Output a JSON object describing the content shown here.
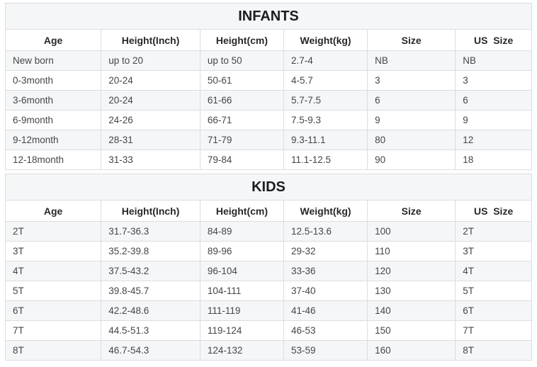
{
  "page": {
    "background": "#ffffff"
  },
  "colors": {
    "row_shade": "#f5f6f8",
    "grid_border": "#dadde0",
    "outer_border": "#c5c9cc",
    "title_text": "#1b1c1e",
    "header_text": "#26282a",
    "cell_text": "#43464a"
  },
  "chart_data": [
    {
      "type": "table",
      "id": "infants",
      "title": "INFANTS",
      "columns": [
        "Age",
        "Height(Inch)",
        "Height(cm)",
        "Weight(kg)",
        "Size",
        "US  Size"
      ],
      "rows": [
        [
          "New born",
          "up to 20",
          "up to 50",
          "2.7-4",
          "NB",
          "NB"
        ],
        [
          "0-3month",
          "20-24",
          "50-61",
          "4-5.7",
          "3",
          "3"
        ],
        [
          "3-6month",
          "20-24",
          "61-66",
          "5.7-7.5",
          "6",
          "6"
        ],
        [
          "6-9month",
          "24-26",
          "66-71",
          "7.5-9.3",
          "9",
          "9"
        ],
        [
          "9-12month",
          "28-31",
          "71-79",
          "9.3-11.1",
          "80",
          "12"
        ],
        [
          "12-18month",
          "31-33",
          "79-84",
          "11.1-12.5",
          "90",
          "18"
        ]
      ],
      "layout": {
        "column_widths_pct": [
          18.2,
          18.8,
          15.9,
          15.9,
          16.7,
          14.5
        ],
        "shaded_rows": "odd",
        "grid": true,
        "title_position": "top-center"
      }
    },
    {
      "type": "table",
      "id": "kids",
      "title": "KIDS",
      "columns": [
        "Age",
        "Height(Inch)",
        "Height(cm)",
        "Weight(kg)",
        "Size",
        "US  Size"
      ],
      "rows": [
        [
          "2T",
          "31.7-36.3",
          "84-89",
          "12.5-13.6",
          "100",
          "2T"
        ],
        [
          "3T",
          "35.2-39.8",
          "89-96",
          "29-32",
          "110",
          "3T"
        ],
        [
          "4T",
          "37.5-43.2",
          "96-104",
          "33-36",
          "120",
          "4T"
        ],
        [
          "5T",
          "39.8-45.7",
          "104-111",
          "37-40",
          "130",
          "5T"
        ],
        [
          "6T",
          "42.2-48.6",
          "111-119",
          "41-46",
          "140",
          "6T"
        ],
        [
          "7T",
          "44.5-51.3",
          "119-124",
          "46-53",
          "150",
          "7T"
        ],
        [
          "8T",
          "46.7-54.3",
          "124-132",
          "53-59",
          "160",
          "8T"
        ]
      ],
      "layout": {
        "column_widths_pct": [
          18.2,
          18.8,
          15.9,
          15.9,
          16.7,
          14.5
        ],
        "shaded_rows": "odd",
        "grid": true,
        "title_position": "top-center"
      }
    }
  ]
}
